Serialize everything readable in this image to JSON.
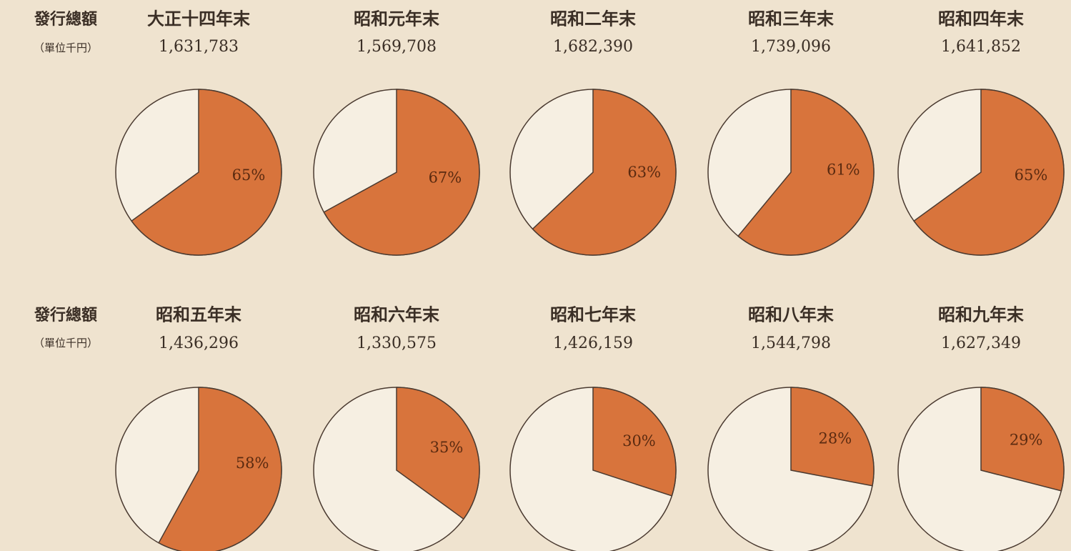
{
  "row_labels": [
    {
      "label": "發行總額",
      "unit": "（單位千円）"
    },
    {
      "label": "發行總額",
      "unit": "（單位千円）"
    }
  ],
  "chart_data": [
    {
      "type": "pie",
      "title": "大正十四年末",
      "subtitle": "1,631,783",
      "values": [
        65
      ],
      "value_labels": [
        "65%"
      ],
      "color": "#d8743c"
    },
    {
      "type": "pie",
      "title": "昭和元年末",
      "subtitle": "1,569,708",
      "values": [
        67
      ],
      "value_labels": [
        "67%"
      ],
      "color": "#d8743c"
    },
    {
      "type": "pie",
      "title": "昭和二年末",
      "subtitle": "1,682,390",
      "values": [
        63
      ],
      "value_labels": [
        "63%"
      ],
      "color": "#d8743c"
    },
    {
      "type": "pie",
      "title": "昭和三年末",
      "subtitle": "1,739,096",
      "values": [
        61
      ],
      "value_labels": [
        "61%"
      ],
      "color": "#d8743c"
    },
    {
      "type": "pie",
      "title": "昭和四年末",
      "subtitle": "1,641,852",
      "values": [
        65
      ],
      "value_labels": [
        "65%"
      ],
      "color": "#d8743c"
    },
    {
      "type": "pie",
      "title": "昭和五年末",
      "subtitle": "1,436,296",
      "values": [
        58
      ],
      "value_labels": [
        "58%"
      ],
      "color": "#d8743c"
    },
    {
      "type": "pie",
      "title": "昭和六年末",
      "subtitle": "1,330,575",
      "values": [
        35
      ],
      "value_labels": [
        "35%"
      ],
      "color": "#d8743c"
    },
    {
      "type": "pie",
      "title": "昭和七年末",
      "subtitle": "1,426,159",
      "values": [
        30
      ],
      "value_labels": [
        "30%"
      ],
      "color": "#d8743c"
    },
    {
      "type": "pie",
      "title": "昭和八年末",
      "subtitle": "1,544,798",
      "values": [
        28
      ],
      "value_labels": [
        "28%"
      ],
      "color": "#d8743c"
    },
    {
      "type": "pie",
      "title": "昭和九年末",
      "subtitle": "1,627,349",
      "values": [
        29
      ],
      "value_labels": [
        "29%"
      ],
      "color": "#d8743c"
    }
  ]
}
